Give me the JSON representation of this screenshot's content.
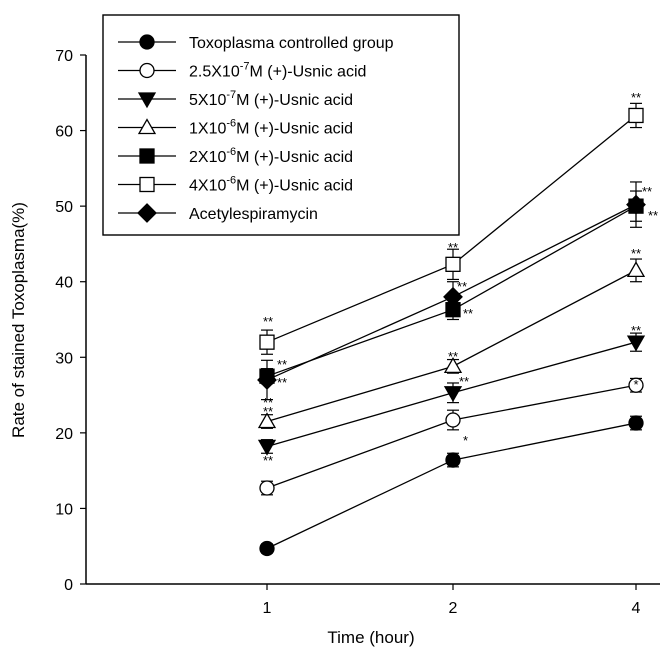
{
  "chart_data": {
    "type": "line",
    "xlabel": "Time (hour)",
    "ylabel": "Rate of stained Toxoplasma(%)",
    "categories": [
      "1",
      "2",
      "4"
    ],
    "ylim": [
      0,
      70
    ],
    "yticks": [
      "0",
      "10",
      "20",
      "30",
      "40",
      "50",
      "60",
      "70"
    ],
    "grid": false,
    "legend_position": "top-left",
    "series": [
      {
        "name": "Toxoplasma controlled group",
        "marker": "filled-circle",
        "values": [
          4.7,
          16.4,
          21.3
        ],
        "errors": [
          0.6,
          0.9,
          0.9
        ],
        "sig": [
          "",
          "",
          ""
        ]
      },
      {
        "name": "2.5X10-7M (+)-Usnic acid",
        "marker": "open-circle",
        "values": [
          12.7,
          21.7,
          26.3
        ],
        "errors": [
          0.9,
          1.3,
          0.9
        ],
        "sig": [
          "**",
          "*",
          "*"
        ]
      },
      {
        "name": "5X10-7M (+)-Usnic acid",
        "marker": "filled-triangle-down",
        "values": [
          18.2,
          25.3,
          32.0
        ],
        "errors": [
          0.9,
          1.3,
          1.2
        ],
        "sig": [
          "**",
          "**",
          "**"
        ]
      },
      {
        "name": "1X10-6M (+)-Usnic acid",
        "marker": "open-triangle-up",
        "values": [
          21.5,
          28.8,
          41.5
        ],
        "errors": [
          0.9,
          0.9,
          1.5
        ],
        "sig": [
          "**",
          "**",
          "**"
        ]
      },
      {
        "name": "2X10-6M (+)-Usnic acid",
        "marker": "filled-square",
        "values": [
          27.5,
          36.3,
          50.0
        ],
        "errors": [
          1.0,
          1.3,
          2.0
        ],
        "sig": [
          "**",
          "**",
          "**"
        ]
      },
      {
        "name": "4X10-6M (+)-Usnic acid",
        "marker": "open-square",
        "values": [
          32.0,
          42.3,
          62.0
        ],
        "errors": [
          1.6,
          2.0,
          1.6
        ],
        "sig": [
          "**",
          "**",
          "**"
        ]
      },
      {
        "name": "Acetylespiramycin",
        "marker": "filled-diamond",
        "values": [
          27.0,
          38.0,
          50.2
        ],
        "errors": [
          2.6,
          2.0,
          3.0
        ],
        "sig": [
          "**",
          "**",
          "**"
        ]
      }
    ]
  },
  "legend": {
    "items": [
      {
        "pre": "Toxoplasma controlled group",
        "sup": "",
        "post": ""
      },
      {
        "pre": "2.5X10",
        "sup": "-7",
        "post": "M (+)-Usnic acid"
      },
      {
        "pre": "5X10",
        "sup": "-7",
        "post": "M (+)-Usnic acid"
      },
      {
        "pre": "1X10",
        "sup": "-6",
        "post": "M (+)-Usnic acid"
      },
      {
        "pre": "2X10",
        "sup": "-6",
        "post": "M (+)-Usnic acid"
      },
      {
        "pre": "4X10",
        "sup": "-6",
        "post": "M (+)-Usnic acid"
      },
      {
        "pre": "Acetylespiramycin",
        "sup": "",
        "post": ""
      }
    ]
  }
}
